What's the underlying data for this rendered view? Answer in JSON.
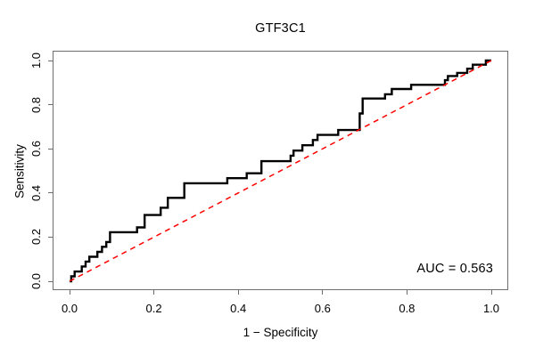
{
  "figure": {
    "title": "GTF3C1",
    "xlabel": "1 − Specificity",
    "ylabel": "Sensitivity",
    "auc_text": "AUC = 0.563"
  },
  "chart_data": {
    "type": "line",
    "subtype": "roc-step-curve",
    "title": "GTF3C1",
    "xlabel": "1 − Specificity",
    "ylabel": "Sensitivity",
    "xlim": [
      0.0,
      1.0
    ],
    "ylim": [
      0.0,
      1.0
    ],
    "x_ticks": [
      0.0,
      0.2,
      0.4,
      0.6,
      0.8,
      1.0
    ],
    "x_tick_labels": [
      "0.0",
      "0.2",
      "0.4",
      "0.6",
      "0.8",
      "1.0"
    ],
    "y_ticks": [
      0.0,
      0.2,
      0.4,
      0.6,
      0.8,
      1.0
    ],
    "y_tick_labels": [
      "0.0",
      "0.2",
      "0.4",
      "0.6",
      "0.8",
      "1.0"
    ],
    "grid": false,
    "legend_position": "none",
    "auc": 0.563,
    "annotation": "AUC = 0.563",
    "colors": {
      "roc_curve": "#000000",
      "diagonal": "#ff0000",
      "axis": "#6e6e6e",
      "text": "#000000",
      "background": "#ffffff"
    },
    "series": [
      {
        "name": "ROC curve (GTF3C1)",
        "style": "solid-step",
        "color": "#000000",
        "points": [
          [
            0.0,
            0.0
          ],
          [
            0.004,
            0.0
          ],
          [
            0.004,
            0.022
          ],
          [
            0.012,
            0.022
          ],
          [
            0.012,
            0.044
          ],
          [
            0.029,
            0.044
          ],
          [
            0.029,
            0.067
          ],
          [
            0.038,
            0.067
          ],
          [
            0.038,
            0.089
          ],
          [
            0.047,
            0.089
          ],
          [
            0.047,
            0.111
          ],
          [
            0.066,
            0.111
          ],
          [
            0.066,
            0.133
          ],
          [
            0.077,
            0.133
          ],
          [
            0.077,
            0.156
          ],
          [
            0.087,
            0.156
          ],
          [
            0.087,
            0.178
          ],
          [
            0.096,
            0.178
          ],
          [
            0.096,
            0.222
          ],
          [
            0.16,
            0.222
          ],
          [
            0.16,
            0.244
          ],
          [
            0.178,
            0.244
          ],
          [
            0.178,
            0.3
          ],
          [
            0.216,
            0.3
          ],
          [
            0.216,
            0.333
          ],
          [
            0.233,
            0.333
          ],
          [
            0.233,
            0.378
          ],
          [
            0.272,
            0.378
          ],
          [
            0.272,
            0.444
          ],
          [
            0.374,
            0.444
          ],
          [
            0.374,
            0.467
          ],
          [
            0.42,
            0.467
          ],
          [
            0.42,
            0.489
          ],
          [
            0.455,
            0.489
          ],
          [
            0.455,
            0.544
          ],
          [
            0.524,
            0.544
          ],
          [
            0.524,
            0.569
          ],
          [
            0.531,
            0.569
          ],
          [
            0.531,
            0.592
          ],
          [
            0.552,
            0.592
          ],
          [
            0.552,
            0.616
          ],
          [
            0.577,
            0.616
          ],
          [
            0.577,
            0.64
          ],
          [
            0.588,
            0.64
          ],
          [
            0.588,
            0.663
          ],
          [
            0.637,
            0.663
          ],
          [
            0.637,
            0.685
          ],
          [
            0.688,
            0.685
          ],
          [
            0.688,
            0.76
          ],
          [
            0.695,
            0.76
          ],
          [
            0.695,
            0.828
          ],
          [
            0.748,
            0.828
          ],
          [
            0.748,
            0.847
          ],
          [
            0.764,
            0.847
          ],
          [
            0.764,
            0.871
          ],
          [
            0.81,
            0.871
          ],
          [
            0.81,
            0.89
          ],
          [
            0.89,
            0.89
          ],
          [
            0.89,
            0.911
          ],
          [
            0.897,
            0.911
          ],
          [
            0.897,
            0.93
          ],
          [
            0.919,
            0.93
          ],
          [
            0.919,
            0.944
          ],
          [
            0.943,
            0.944
          ],
          [
            0.943,
            0.963
          ],
          [
            0.956,
            0.963
          ],
          [
            0.956,
            0.981
          ],
          [
            0.987,
            0.981
          ],
          [
            0.987,
            1.0
          ],
          [
            1.0,
            1.0
          ]
        ]
      },
      {
        "name": "chance diagonal",
        "style": "dashed",
        "color": "#ff0000",
        "points": [
          [
            0.0,
            0.0
          ],
          [
            1.0,
            1.0
          ]
        ]
      }
    ]
  }
}
